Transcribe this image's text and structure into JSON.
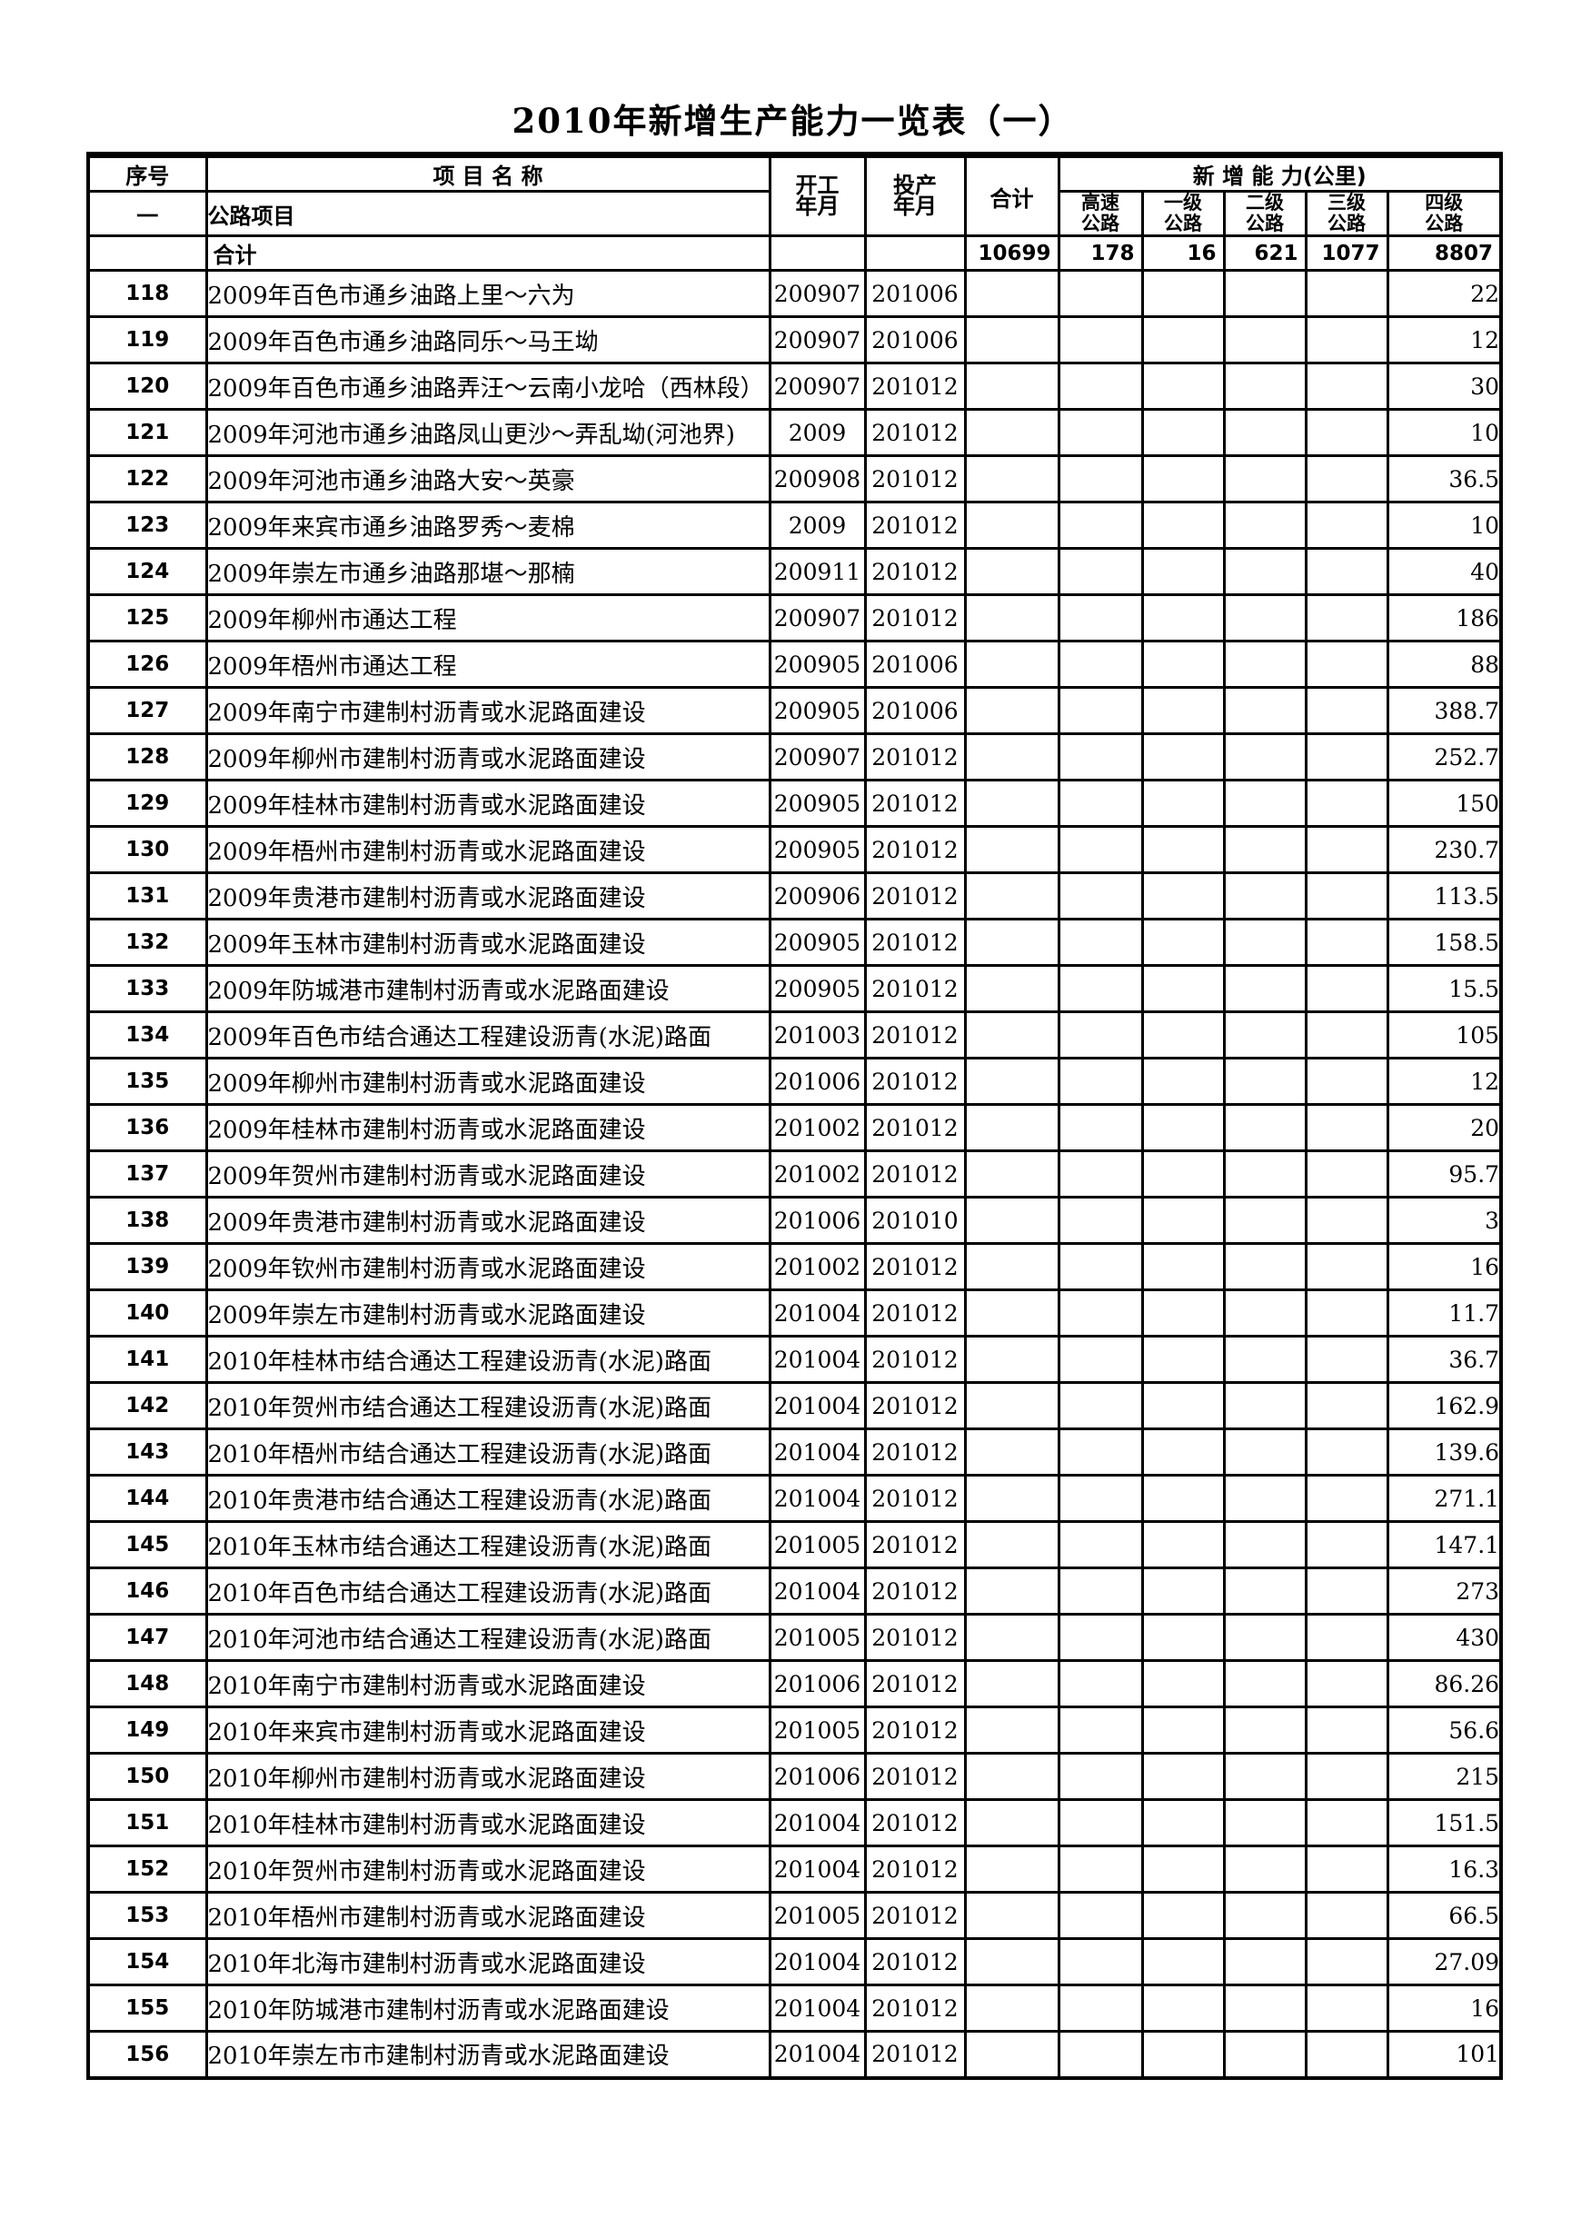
{
  "title": "2010年新增生产能力一览表（一）",
  "table": {
    "headers": {
      "serial": "序号",
      "project": "项 目 名 称",
      "start": "开工\n年月",
      "production": "投产\n年月",
      "total": "合计",
      "capacity_group": "新 增 能 力(公里)",
      "expressway": "高速\n公路",
      "grade1": "一级\n公路",
      "grade2": "二级\n公路",
      "grade3": "三级\n公路",
      "grade4": "四级\n公路"
    },
    "section": {
      "num": "一",
      "label": "公路项目"
    },
    "total_row": {
      "label": "合计",
      "total": "10699",
      "expressway": "178",
      "grade1": "16",
      "grade2": "621",
      "grade3": "1077",
      "grade4": "8807"
    },
    "rows": [
      {
        "num": "118",
        "name": "2009年百色市通乡油路上里～六为",
        "start": "200907",
        "prod": "201006",
        "grade4": "22"
      },
      {
        "num": "119",
        "name": "2009年百色市通乡油路同乐～马王坳",
        "start": "200907",
        "prod": "201006",
        "grade4": "12"
      },
      {
        "num": "120",
        "name": "2009年百色市通乡油路弄汪～云南小龙哈（西林段）",
        "start": "200907",
        "prod": "201012",
        "grade4": "30"
      },
      {
        "num": "121",
        "name": "2009年河池市通乡油路凤山更沙～弄乱坳(河池界)",
        "start": "2009",
        "prod": "201012",
        "grade4": "10"
      },
      {
        "num": "122",
        "name": "2009年河池市通乡油路大安～英豪",
        "start": "200908",
        "prod": "201012",
        "grade4": "36.5"
      },
      {
        "num": "123",
        "name": "2009年来宾市通乡油路罗秀～麦棉",
        "start": "2009",
        "prod": "201012",
        "grade4": "10"
      },
      {
        "num": "124",
        "name": "2009年崇左市通乡油路那堪～那楠",
        "start": "200911",
        "prod": "201012",
        "grade4": "40"
      },
      {
        "num": "125",
        "name": "2009年柳州市通达工程",
        "start": "200907",
        "prod": "201012",
        "grade4": "186"
      },
      {
        "num": "126",
        "name": "2009年梧州市通达工程",
        "start": "200905",
        "prod": "201006",
        "grade4": "88"
      },
      {
        "num": "127",
        "name": "2009年南宁市建制村沥青或水泥路面建设",
        "start": "200905",
        "prod": "201006",
        "grade4": "388.7"
      },
      {
        "num": "128",
        "name": "2009年柳州市建制村沥青或水泥路面建设",
        "start": "200907",
        "prod": "201012",
        "grade4": "252.7"
      },
      {
        "num": "129",
        "name": "2009年桂林市建制村沥青或水泥路面建设",
        "start": "200905",
        "prod": "201012",
        "grade4": "150"
      },
      {
        "num": "130",
        "name": "2009年梧州市建制村沥青或水泥路面建设",
        "start": "200905",
        "prod": "201012",
        "grade4": "230.7"
      },
      {
        "num": "131",
        "name": "2009年贵港市建制村沥青或水泥路面建设",
        "start": "200906",
        "prod": "201012",
        "grade4": "113.5"
      },
      {
        "num": "132",
        "name": "2009年玉林市建制村沥青或水泥路面建设",
        "start": "200905",
        "prod": "201012",
        "grade4": "158.5"
      },
      {
        "num": "133",
        "name": "2009年防城港市建制村沥青或水泥路面建设",
        "start": "200905",
        "prod": "201012",
        "grade4": "15.5"
      },
      {
        "num": "134",
        "name": "2009年百色市结合通达工程建设沥青(水泥)路面",
        "start": "201003",
        "prod": "201012",
        "grade4": "105"
      },
      {
        "num": "135",
        "name": "2009年柳州市建制村沥青或水泥路面建设",
        "start": "201006",
        "prod": "201012",
        "grade4": "12"
      },
      {
        "num": "136",
        "name": "2009年桂林市建制村沥青或水泥路面建设",
        "start": "201002",
        "prod": "201012",
        "grade4": "20"
      },
      {
        "num": "137",
        "name": "2009年贺州市建制村沥青或水泥路面建设",
        "start": "201002",
        "prod": "201012",
        "grade4": "95.7"
      },
      {
        "num": "138",
        "name": "2009年贵港市建制村沥青或水泥路面建设",
        "start": "201006",
        "prod": "201010",
        "grade4": "3"
      },
      {
        "num": "139",
        "name": "2009年钦州市建制村沥青或水泥路面建设",
        "start": "201002",
        "prod": "201012",
        "grade4": "16"
      },
      {
        "num": "140",
        "name": "2009年崇左市建制村沥青或水泥路面建设",
        "start": "201004",
        "prod": "201012",
        "grade4": "11.7"
      },
      {
        "num": "141",
        "name": "2010年桂林市结合通达工程建设沥青(水泥)路面",
        "start": "201004",
        "prod": "201012",
        "grade4": "36.7"
      },
      {
        "num": "142",
        "name": "2010年贺州市结合通达工程建设沥青(水泥)路面",
        "start": "201004",
        "prod": "201012",
        "grade4": "162.9"
      },
      {
        "num": "143",
        "name": "2010年梧州市结合通达工程建设沥青(水泥)路面",
        "start": "201004",
        "prod": "201012",
        "grade4": "139.6"
      },
      {
        "num": "144",
        "name": "2010年贵港市结合通达工程建设沥青(水泥)路面",
        "start": "201004",
        "prod": "201012",
        "grade4": "271.1"
      },
      {
        "num": "145",
        "name": "2010年玉林市结合通达工程建设沥青(水泥)路面",
        "start": "201005",
        "prod": "201012",
        "grade4": "147.1"
      },
      {
        "num": "146",
        "name": "2010年百色市结合通达工程建设沥青(水泥)路面",
        "start": "201004",
        "prod": "201012",
        "grade4": "273"
      },
      {
        "num": "147",
        "name": "2010年河池市结合通达工程建设沥青(水泥)路面",
        "start": "201005",
        "prod": "201012",
        "grade4": "430"
      },
      {
        "num": "148",
        "name": "2010年南宁市建制村沥青或水泥路面建设",
        "start": "201006",
        "prod": "201012",
        "grade4": "86.26"
      },
      {
        "num": "149",
        "name": "2010年来宾市建制村沥青或水泥路面建设",
        "start": "201005",
        "prod": "201012",
        "grade4": "56.6"
      },
      {
        "num": "150",
        "name": "2010年柳州市建制村沥青或水泥路面建设",
        "start": "201006",
        "prod": "201012",
        "grade4": "215"
      },
      {
        "num": "151",
        "name": "2010年桂林市建制村沥青或水泥路面建设",
        "start": "201004",
        "prod": "201012",
        "grade4": "151.5"
      },
      {
        "num": "152",
        "name": "2010年贺州市建制村沥青或水泥路面建设",
        "start": "201004",
        "prod": "201012",
        "grade4": "16.3"
      },
      {
        "num": "153",
        "name": "2010年梧州市建制村沥青或水泥路面建设",
        "start": "201005",
        "prod": "201012",
        "grade4": "66.5"
      },
      {
        "num": "154",
        "name": "2010年北海市建制村沥青或水泥路面建设",
        "start": "201004",
        "prod": "201012",
        "grade4": "27.09"
      },
      {
        "num": "155",
        "name": "2010年防城港市建制村沥青或水泥路面建设",
        "start": "201004",
        "prod": "201012",
        "grade4": "16"
      },
      {
        "num": "156",
        "name": "2010年崇左市市建制村沥青或水泥路面建设",
        "start": "201004",
        "prod": "201012",
        "grade4": "101"
      }
    ]
  }
}
